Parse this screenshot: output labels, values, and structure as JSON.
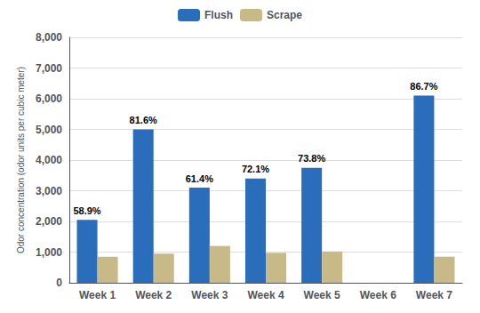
{
  "chart_data": {
    "type": "bar",
    "categories": [
      "Week 1",
      "Week 2",
      "Week 3",
      "Week 4",
      "Week 5",
      "Week 6",
      "Week 7"
    ],
    "series": [
      {
        "name": "Flush",
        "color": "#2A6EBB",
        "values": [
          2050,
          5000,
          3100,
          3400,
          3750,
          0,
          6100
        ]
      },
      {
        "name": "Scrape",
        "color": "#C8BA88",
        "values": [
          850,
          950,
          1200,
          975,
          1020,
          0,
          850
        ]
      }
    ],
    "ylabel": "Odor concentration (odor units per cubic meter)",
    "ylim": [
      0,
      8000
    ],
    "yticks": [
      0,
      {
        "value": 1000,
        "label": "1,000"
      },
      {
        "value": 2000,
        "label": "2,000"
      },
      {
        "value": 3000,
        "label": "3,000"
      },
      {
        "value": 4000,
        "label": "4,000"
      },
      {
        "value": 5000,
        "label": "5,000"
      },
      {
        "value": 6000,
        "label": "6,000"
      },
      {
        "value": 7000,
        "label": "7,000"
      },
      {
        "value": 8000,
        "label": "8,000"
      }
    ],
    "grid": true,
    "legend": "top",
    "annotations": [
      {
        "category": "Week 1",
        "series": "Flush",
        "text": "58.9%"
      },
      {
        "category": "Week 2",
        "series": "Flush",
        "text": "81.6%"
      },
      {
        "category": "Week 3",
        "series": "Flush",
        "text": "61.4%"
      },
      {
        "category": "Week 4",
        "series": "Flush",
        "text": "72.1%"
      },
      {
        "category": "Week 5",
        "series": "Flush",
        "text": "73.8%"
      },
      {
        "category": "Week 7",
        "series": "Flush",
        "text": "86.7%"
      }
    ]
  }
}
